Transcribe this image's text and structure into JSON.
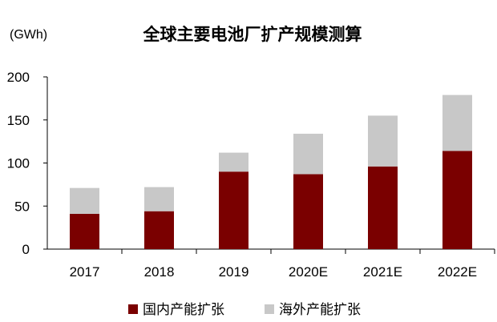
{
  "chart_data": {
    "type": "bar",
    "stacked": true,
    "title": "全球主要电池厂扩产规模测算",
    "unit_label": "(GWh)",
    "categories": [
      "2017",
      "2018",
      "2019",
      "2020E",
      "2021E",
      "2022E"
    ],
    "series": [
      {
        "name": "国内产能扩张",
        "color": "#7a0000",
        "values": [
          41,
          44,
          90,
          87,
          96,
          114
        ]
      },
      {
        "name": "海外产能扩张",
        "color": "#c8c8c8",
        "values": [
          30,
          28,
          22,
          47,
          59,
          65
        ]
      }
    ],
    "ylim": [
      0,
      200
    ],
    "yticks": [
      0,
      50,
      100,
      150,
      200
    ],
    "grid": false,
    "legend_position": "bottom"
  }
}
